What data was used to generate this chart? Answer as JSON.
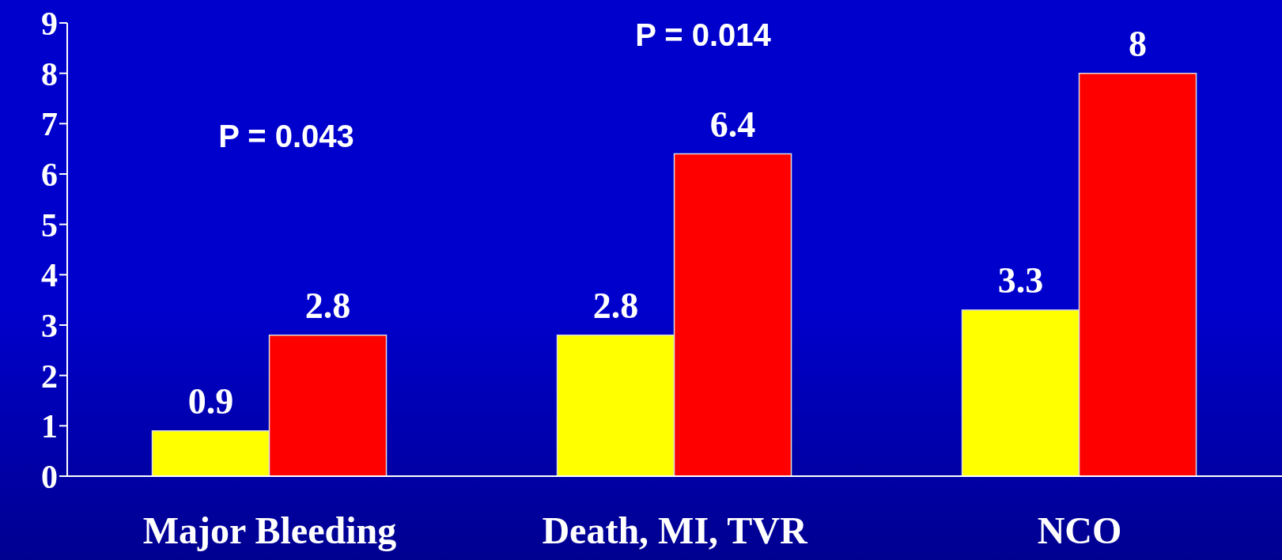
{
  "chart_data": {
    "type": "bar",
    "categories": [
      "Major Bleeding",
      "Death, MI, TVR",
      "NCO"
    ],
    "series": [
      {
        "color": "#ffff00",
        "values": [
          0.9,
          2.8,
          3.3
        ]
      },
      {
        "color": "#ff0000",
        "values": [
          2.8,
          6.4,
          8
        ]
      }
    ],
    "ylim": [
      0,
      9
    ],
    "yticks": [
      0,
      1,
      2,
      3,
      4,
      5,
      6,
      7,
      8,
      9
    ],
    "grid": false,
    "legend": false,
    "data_labels": true,
    "annotations": [
      "P = 0.043",
      "P = 0.014"
    ]
  }
}
